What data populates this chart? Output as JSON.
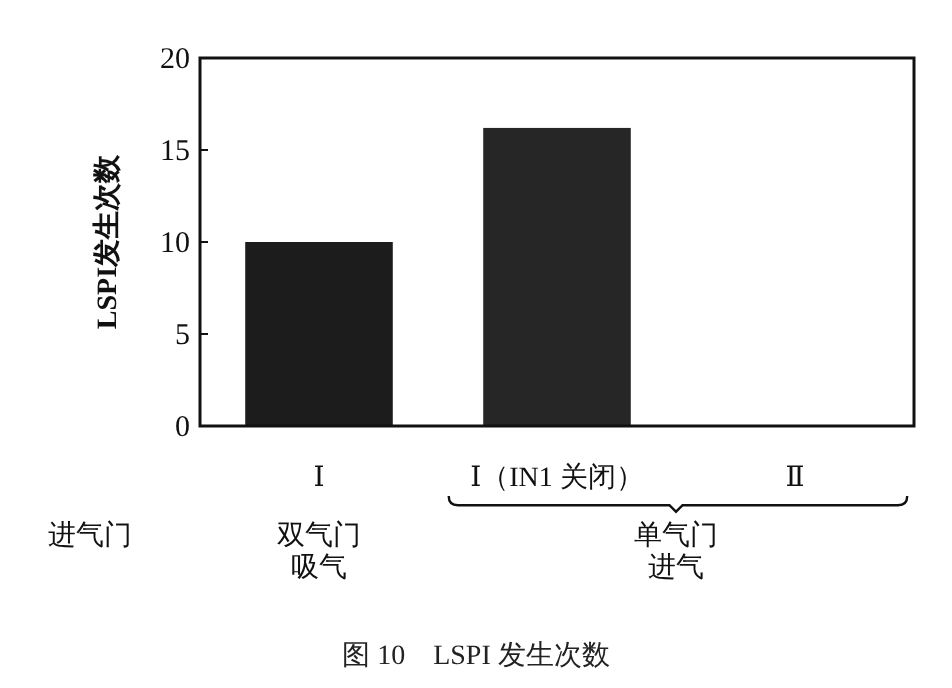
{
  "chart_data": {
    "type": "bar",
    "title": "图 10　LSPI 发生次数",
    "ylabel": "LSPI发生次数",
    "categories": [
      "Ⅰ",
      "Ⅰ（IN1 关闭）",
      "Ⅱ"
    ],
    "values": [
      10,
      16.2,
      0
    ],
    "colors": [
      "#1c1c1c",
      "#262626",
      "#262626"
    ],
    "ylim": [
      0,
      20
    ],
    "yticks": [
      0,
      5,
      10,
      15,
      20
    ],
    "annotations": [
      "进气门",
      "双气门",
      "吸气",
      "单气门",
      "进气"
    ]
  }
}
